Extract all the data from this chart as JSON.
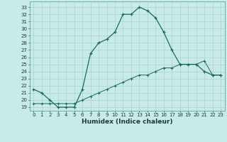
{
  "title": "",
  "xlabel": "Humidex (Indice chaleur)",
  "ylabel": "",
  "background_color": "#c8ebe8",
  "grid_color": "#aad4d0",
  "line_color": "#1a6b5a",
  "xlim": [
    -0.5,
    23.5
  ],
  "ylim": [
    18.5,
    33.8
  ],
  "xticks": [
    0,
    1,
    2,
    3,
    4,
    5,
    6,
    7,
    8,
    9,
    10,
    11,
    12,
    13,
    14,
    15,
    16,
    17,
    18,
    19,
    20,
    21,
    22,
    23
  ],
  "yticks": [
    19,
    20,
    21,
    22,
    23,
    24,
    25,
    26,
    27,
    28,
    29,
    30,
    31,
    32,
    33
  ],
  "series1_x": [
    0,
    1,
    2,
    3,
    4,
    5,
    6,
    7,
    8,
    9,
    10,
    11,
    12,
    13,
    14,
    15,
    16,
    17,
    18,
    19,
    20,
    21,
    22,
    23
  ],
  "series1_y": [
    21.5,
    21.0,
    20.0,
    19.0,
    19.0,
    19.0,
    21.5,
    26.5,
    28.0,
    28.5,
    29.5,
    32.0,
    32.0,
    33.0,
    32.5,
    31.5,
    29.5,
    27.0,
    25.0,
    25.0,
    25.0,
    24.0,
    23.5,
    23.5
  ],
  "series2_x": [
    0,
    1,
    2,
    3,
    4,
    5,
    6,
    7,
    8,
    9,
    10,
    11,
    12,
    13,
    14,
    15,
    16,
    17,
    18,
    19,
    20,
    21,
    22,
    23
  ],
  "series2_y": [
    19.5,
    19.5,
    19.5,
    19.5,
    19.5,
    19.5,
    20.0,
    20.5,
    21.0,
    21.5,
    22.0,
    22.5,
    23.0,
    23.5,
    23.5,
    24.0,
    24.5,
    24.5,
    25.0,
    25.0,
    25.0,
    25.5,
    23.5,
    23.5
  ],
  "xlabel_fontsize": 6.5,
  "tick_fontsize": 5.0
}
